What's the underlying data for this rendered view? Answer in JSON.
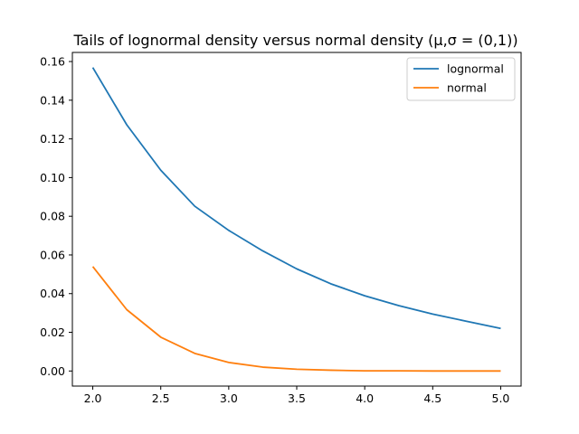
{
  "chart_data": {
    "type": "line",
    "title": "Tails of lognormal density versus normal density (μ,σ = (0,1))",
    "xlabel": "",
    "ylabel": "",
    "xlim": [
      1.85,
      5.15
    ],
    "ylim": [
      -0.0078,
      0.1647
    ],
    "xticks": [
      2.0,
      2.5,
      3.0,
      3.5,
      4.0,
      4.5,
      5.0
    ],
    "xtick_labels": [
      "2.0",
      "2.5",
      "3.0",
      "3.5",
      "4.0",
      "4.5",
      "5.0"
    ],
    "yticks": [
      0.0,
      0.02,
      0.04,
      0.06,
      0.08,
      0.1,
      0.12,
      0.14,
      0.16
    ],
    "ytick_labels": [
      "0.00",
      "0.02",
      "0.04",
      "0.06",
      "0.08",
      "0.10",
      "0.12",
      "0.14",
      "0.16"
    ],
    "grid": false,
    "legend_position": "top-right",
    "x": [
      2.0,
      2.25,
      2.5,
      2.75,
      3.0,
      3.25,
      3.5,
      3.75,
      4.0,
      4.25,
      4.5,
      4.75,
      5.0
    ],
    "series": [
      {
        "name": "lognormal",
        "color": "#1f77b4",
        "values": [
          0.1569,
          0.1273,
          0.1038,
          0.0852,
          0.0727,
          0.0621,
          0.0528,
          0.0451,
          0.0389,
          0.0338,
          0.0294,
          0.0257,
          0.022
        ]
      },
      {
        "name": "normal",
        "color": "#ff7f0e",
        "values": [
          0.054,
          0.0317,
          0.0175,
          0.0091,
          0.0044,
          0.002,
          0.0009,
          0.0004,
          0.0001,
          0.0001,
          0.0,
          0.0,
          0.0
        ]
      }
    ]
  }
}
